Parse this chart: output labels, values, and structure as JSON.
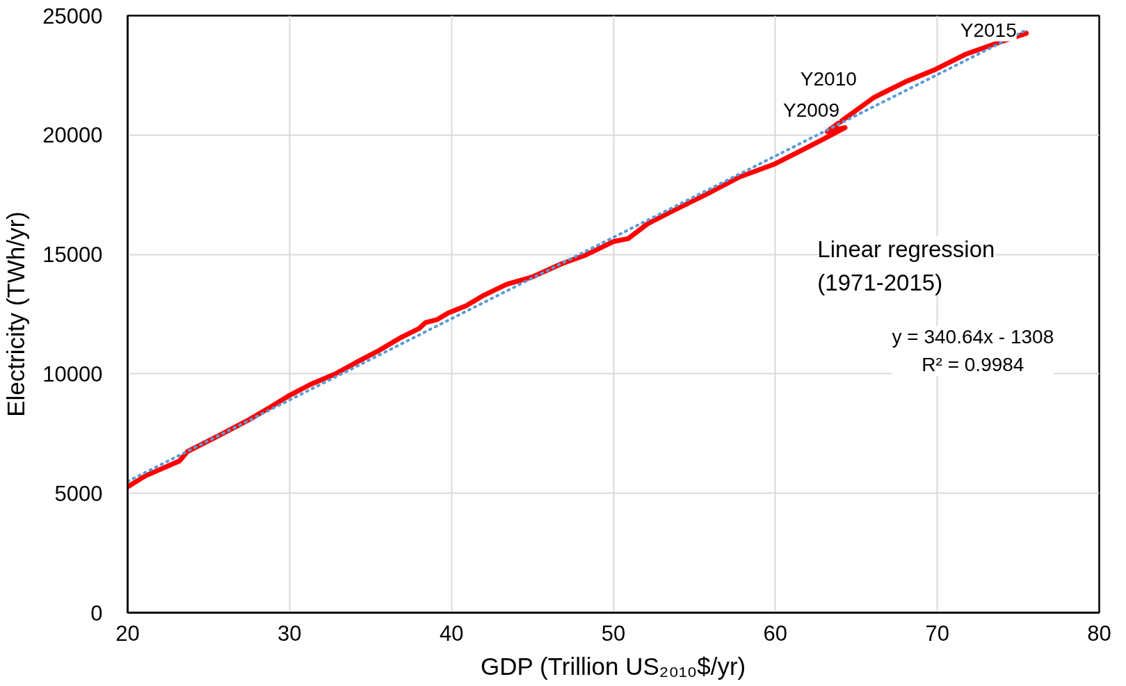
{
  "chart_data": {
    "type": "line",
    "xlabel": "GDP (Trillion US₂₀₁₀$/yr)",
    "ylabel": "Electricity (TWh/yr)",
    "xlim": [
      20,
      80
    ],
    "xticks": [
      20,
      30,
      40,
      50,
      60,
      70,
      80
    ],
    "ylim": [
      0,
      25000
    ],
    "yticks": [
      0,
      5000,
      10000,
      15000,
      20000,
      25000
    ],
    "grid": true,
    "marker": "none",
    "series": [
      {
        "color": "#ff0000",
        "line_style": "solid",
        "x": [
          20.0,
          21.1,
          23.2,
          23.7,
          25.6,
          27.5,
          28.8,
          29.9,
          31.3,
          32.8,
          34.2,
          35.5,
          36.9,
          38.0,
          38.4,
          39.1,
          39.8,
          40.9,
          42.0,
          43.4,
          45.0,
          46.8,
          48.2,
          50.0,
          50.9,
          52.1,
          53.6,
          55.8,
          57.8,
          59.9,
          61.7,
          63.2,
          64.3,
          63.2,
          66.1,
          68.0,
          69.8,
          71.7,
          73.6,
          75.5
        ],
        "values": [
          5270,
          5730,
          6350,
          6750,
          7400,
          8080,
          8600,
          9060,
          9560,
          9990,
          10510,
          10970,
          11530,
          11900,
          12150,
          12270,
          12550,
          12850,
          13290,
          13750,
          14060,
          14610,
          14950,
          15540,
          15660,
          16280,
          16800,
          17540,
          18250,
          18770,
          19390,
          19910,
          20310,
          20150,
          21580,
          22220,
          22720,
          23370,
          23830,
          24260
        ]
      },
      {
        "color": "#5b9bd5",
        "line_style": "dotted",
        "x": [
          20,
          75.5
        ],
        "values": [
          5500,
          24400
        ]
      }
    ],
    "annotations": [
      {
        "text": "Y2009",
        "x": 64.3,
        "y": 20310
      },
      {
        "text": "Y2010",
        "x": 63.2,
        "y": 20150
      },
      {
        "text": "Y2015",
        "x": 75.5,
        "y": 24260
      },
      "Linear regression\n(1971-2015)",
      "y = 340.64x - 1308\nR² = 0.9984"
    ]
  }
}
